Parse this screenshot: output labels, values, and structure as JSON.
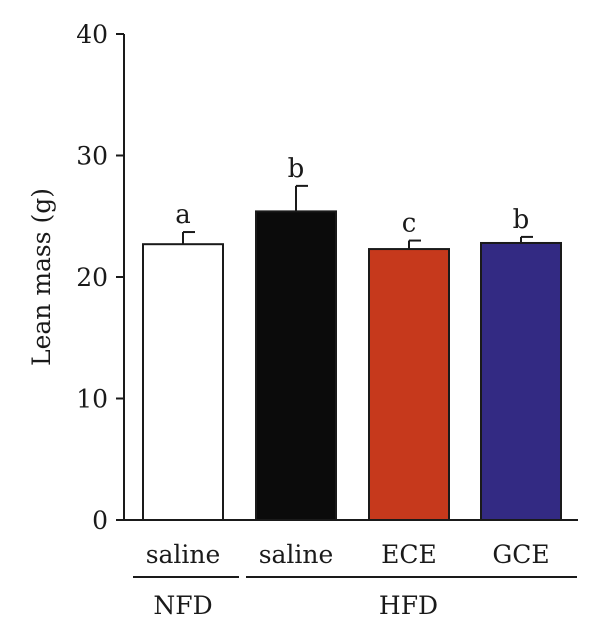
{
  "chart_data": {
    "type": "bar",
    "categories": [
      "saline",
      "saline",
      "ECE",
      "GCE"
    ],
    "groups": [
      {
        "label": "NFD",
        "from": 0,
        "to": 0
      },
      {
        "label": "HFD",
        "from": 1,
        "to": 3
      }
    ],
    "values": [
      22.7,
      25.4,
      22.3,
      22.8
    ],
    "errors": [
      1.0,
      2.1,
      0.7,
      0.5
    ],
    "significance": [
      "a",
      "b",
      "c",
      "b"
    ],
    "colors": [
      "#ffffff",
      "#0b0b0b",
      "#c6391c",
      "#332a83"
    ],
    "ylabel": "Lean mass (g)",
    "ylim": [
      0,
      40
    ],
    "yticks": [
      0,
      10,
      20,
      30,
      40
    ],
    "grid": false
  }
}
